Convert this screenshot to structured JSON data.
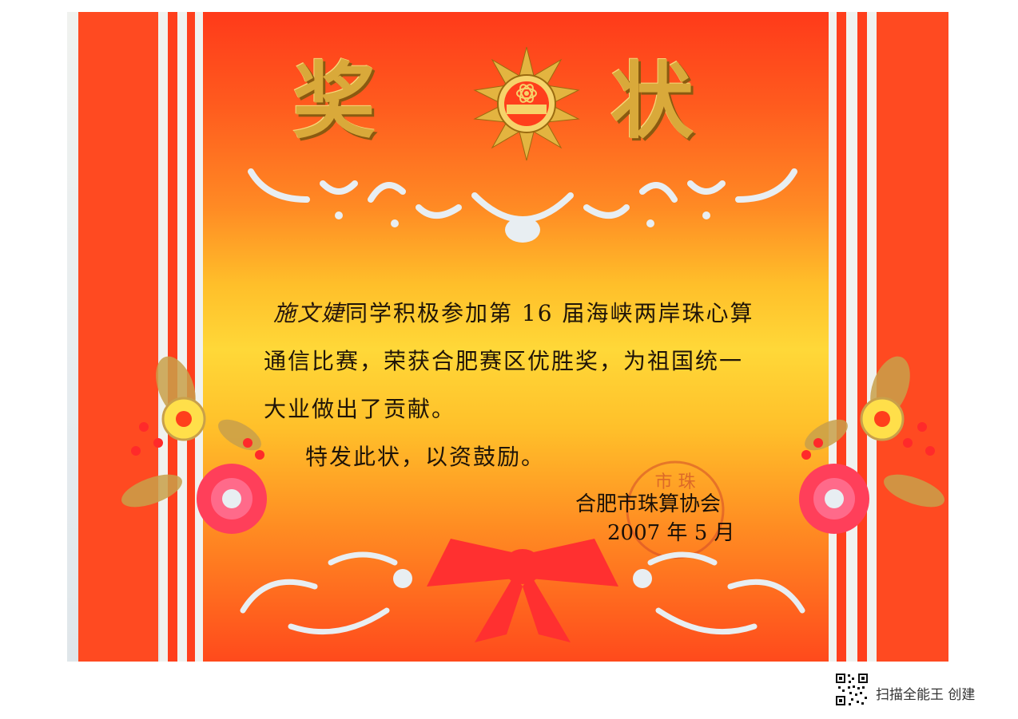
{
  "certificate": {
    "title_left": "奖",
    "title_right": "状",
    "recipient_name": "施文婕",
    "body_line1_rest": "同学积极参加第 16 届海峡两岸珠心算",
    "body_line2": "通信比赛，荣获合肥赛区优胜奖，为祖国统一",
    "body_line3": "大业做出了贡献。",
    "body_line4": "特发此状，以资鼓励。",
    "issuer": "合肥市珠算协会",
    "date": "2007 年 5 月",
    "seal_text": "市 珠"
  },
  "footer": {
    "app_label": "扫描全能王 创建"
  },
  "colors": {
    "red": "#ff3f1c",
    "gold": "#d9a93a",
    "yellow": "#ffd838",
    "light_blue": "#e6ecef"
  }
}
